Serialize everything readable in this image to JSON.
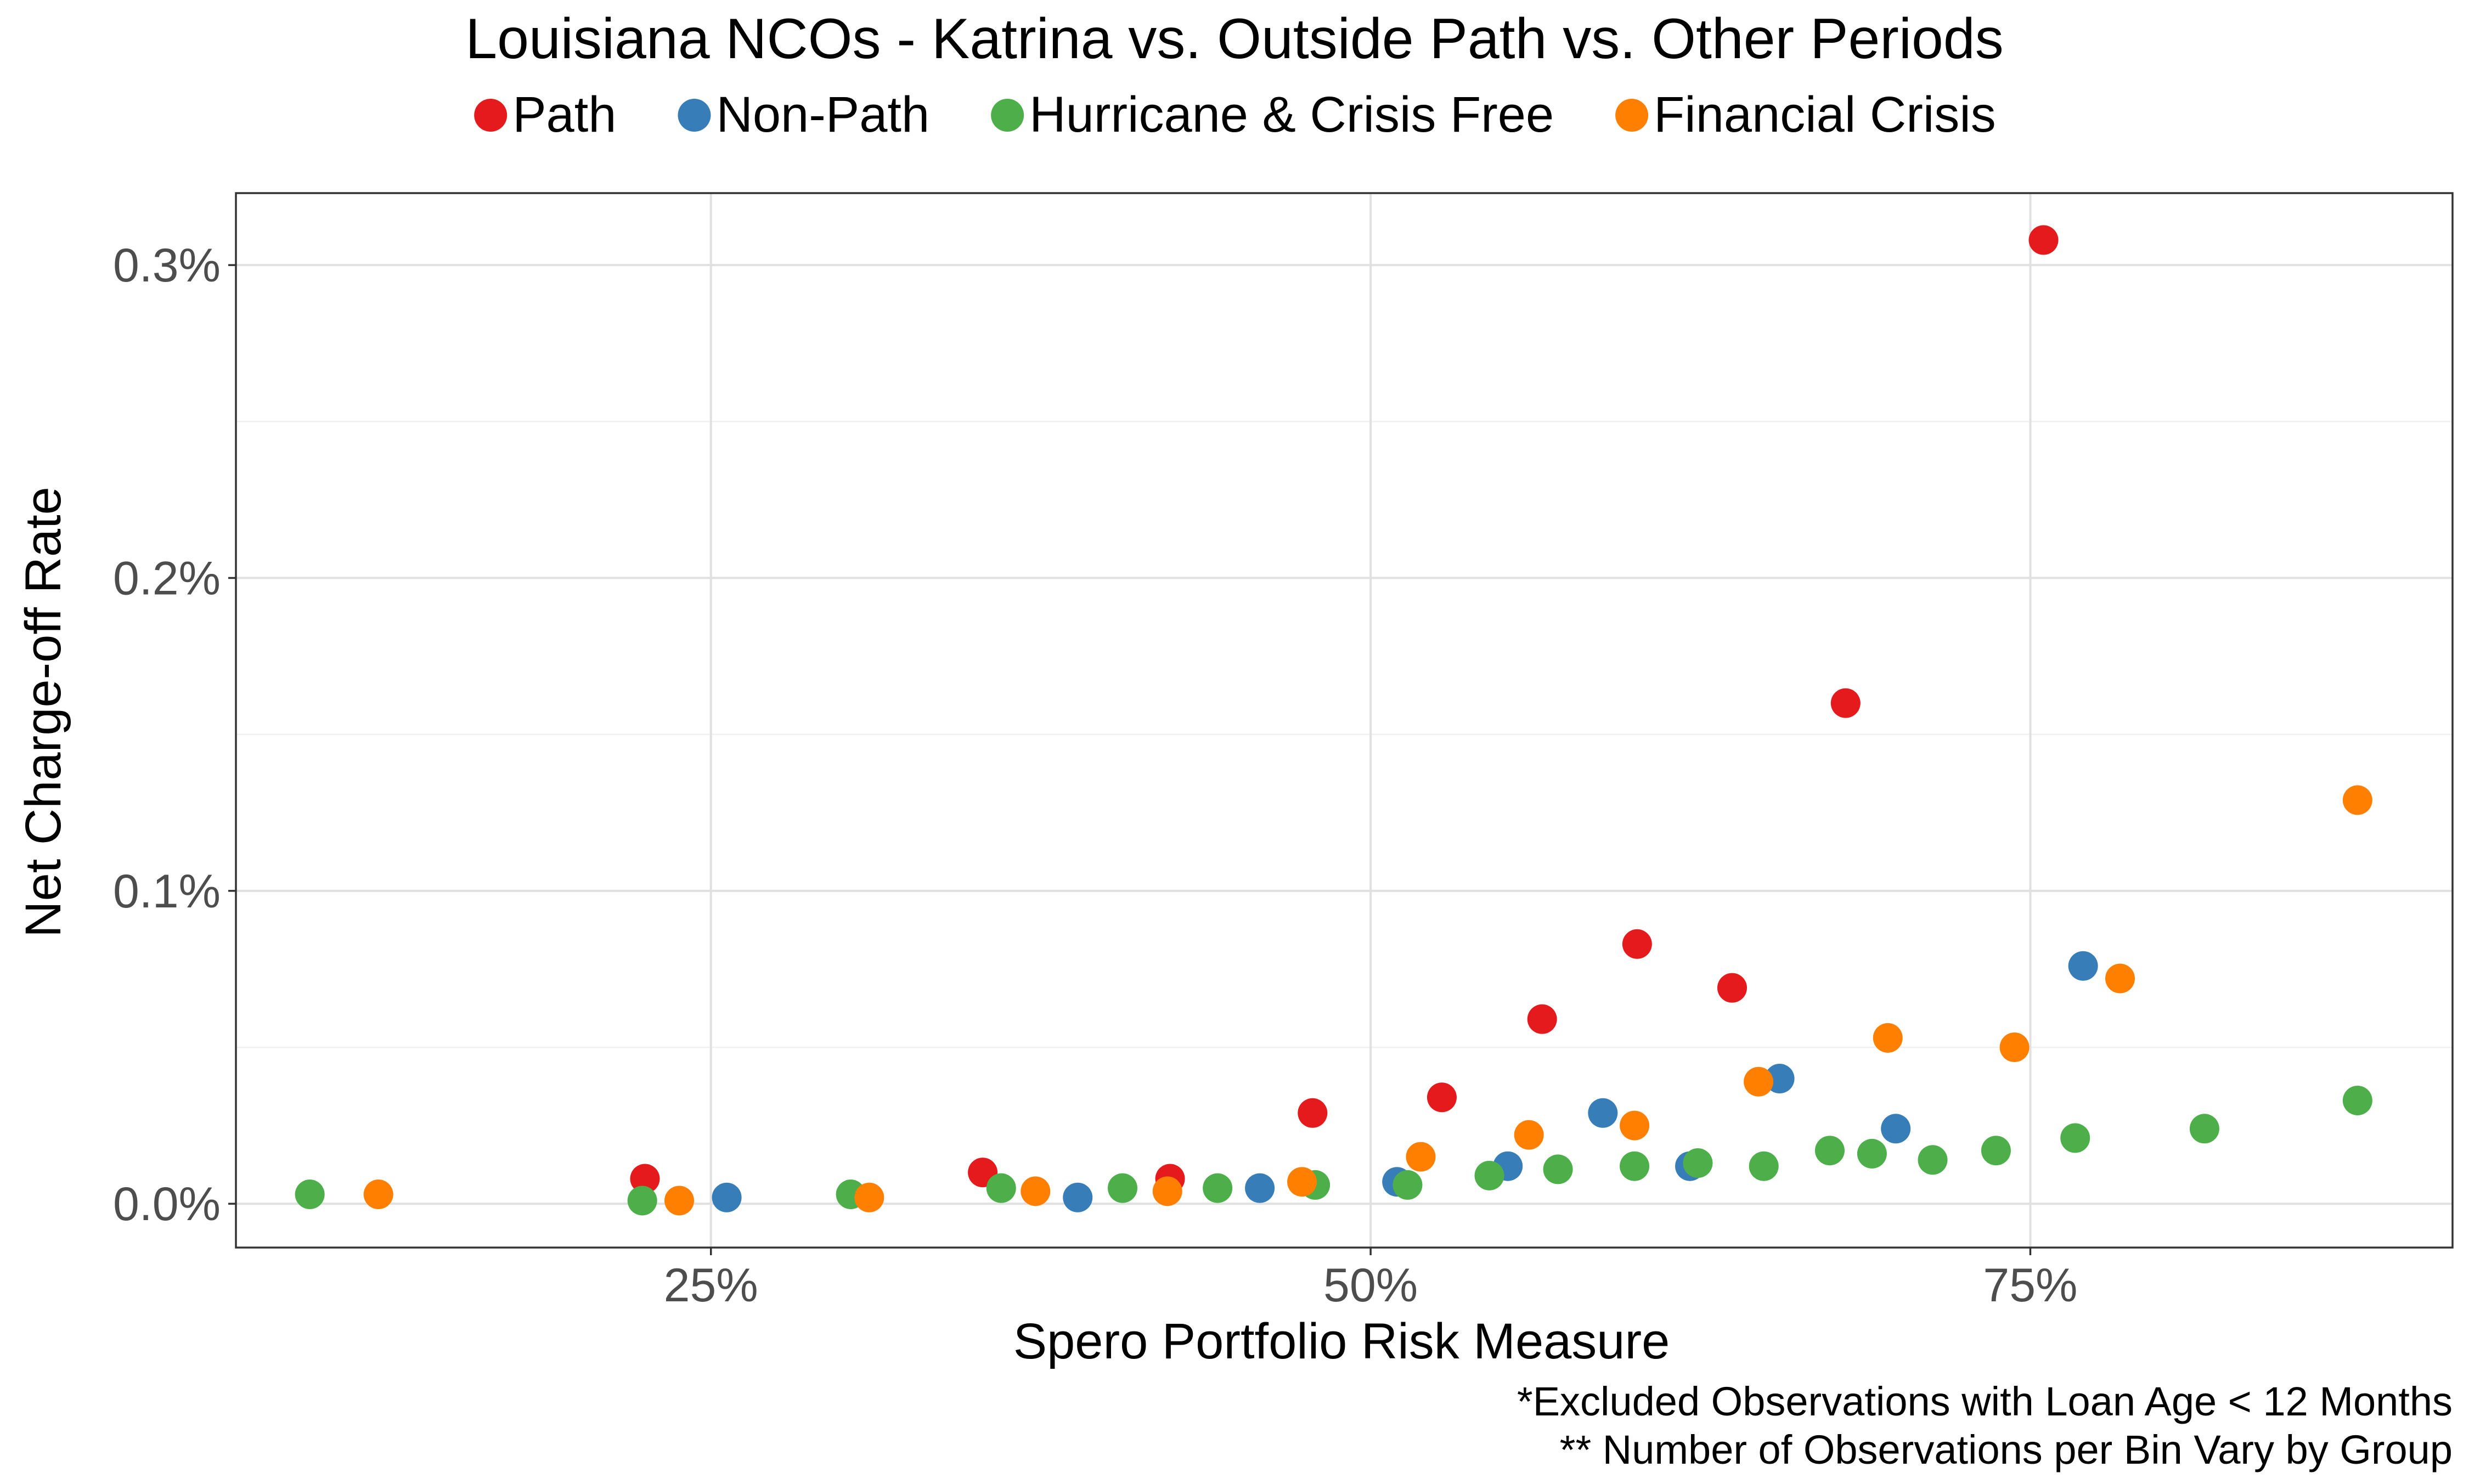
{
  "chart_data": {
    "type": "scatter",
    "title": "Louisiana NCOs - Katrina vs. Outside Path vs. Other Periods",
    "xlabel": "Spero Portfolio Risk Measure",
    "ylabel": "Net Charge-off Rate",
    "xlim": [
      0.07,
      0.91
    ],
    "ylim": [
      -0.00014,
      0.00323
    ],
    "x_ticks": [
      {
        "value": 0.25,
        "label": "25%"
      },
      {
        "value": 0.5,
        "label": "50%"
      },
      {
        "value": 0.75,
        "label": "75%"
      }
    ],
    "y_ticks": [
      {
        "value": 0.0,
        "label": "0.0%"
      },
      {
        "value": 0.001,
        "label": "0.1%"
      },
      {
        "value": 0.002,
        "label": "0.2%"
      },
      {
        "value": 0.003,
        "label": "0.3%"
      }
    ],
    "grid": true,
    "legend_position": "top",
    "series": [
      {
        "name": "Path",
        "color": "#e41a1c",
        "points": [
          {
            "x": 0.225,
            "y": 8e-05
          },
          {
            "x": 0.353,
            "y": 0.0001
          },
          {
            "x": 0.424,
            "y": 8e-05
          },
          {
            "x": 0.478,
            "y": 0.00029
          },
          {
            "x": 0.527,
            "y": 0.00034
          },
          {
            "x": 0.565,
            "y": 0.00059
          },
          {
            "x": 0.601,
            "y": 0.00083
          },
          {
            "x": 0.637,
            "y": 0.00069
          },
          {
            "x": 0.68,
            "y": 0.0016
          },
          {
            "x": 0.755,
            "y": 0.00308
          }
        ]
      },
      {
        "name": "Non-Path",
        "color": "#377eb8",
        "points": [
          {
            "x": 0.256,
            "y": 2e-05
          },
          {
            "x": 0.389,
            "y": 2e-05
          },
          {
            "x": 0.458,
            "y": 5e-05
          },
          {
            "x": 0.51,
            "y": 7e-05
          },
          {
            "x": 0.552,
            "y": 0.00012
          },
          {
            "x": 0.588,
            "y": 0.00029
          },
          {
            "x": 0.621,
            "y": 0.00012
          },
          {
            "x": 0.655,
            "y": 0.0004
          },
          {
            "x": 0.699,
            "y": 0.00024
          },
          {
            "x": 0.77,
            "y": 0.00076
          }
        ]
      },
      {
        "name": "Hurricane & Crisis Free",
        "color": "#4daf4a",
        "points": [
          {
            "x": 0.098,
            "y": 3e-05
          },
          {
            "x": 0.224,
            "y": 1e-05
          },
          {
            "x": 0.303,
            "y": 3e-05
          },
          {
            "x": 0.36,
            "y": 5e-05
          },
          {
            "x": 0.406,
            "y": 5e-05
          },
          {
            "x": 0.442,
            "y": 5e-05
          },
          {
            "x": 0.479,
            "y": 6e-05
          },
          {
            "x": 0.514,
            "y": 6e-05
          },
          {
            "x": 0.545,
            "y": 9e-05
          },
          {
            "x": 0.571,
            "y": 0.00011
          },
          {
            "x": 0.6,
            "y": 0.00012
          },
          {
            "x": 0.624,
            "y": 0.00013
          },
          {
            "x": 0.649,
            "y": 0.00012
          },
          {
            "x": 0.674,
            "y": 0.00017
          },
          {
            "x": 0.69,
            "y": 0.00016
          },
          {
            "x": 0.713,
            "y": 0.00014
          },
          {
            "x": 0.737,
            "y": 0.00017
          },
          {
            "x": 0.767,
            "y": 0.00021
          },
          {
            "x": 0.816,
            "y": 0.00024
          },
          {
            "x": 0.874,
            "y": 0.00033
          }
        ]
      },
      {
        "name": "Financial Crisis",
        "color": "#ff7f00",
        "points": [
          {
            "x": 0.124,
            "y": 3e-05
          },
          {
            "x": 0.238,
            "y": 1e-05
          },
          {
            "x": 0.31,
            "y": 2e-05
          },
          {
            "x": 0.373,
            "y": 4e-05
          },
          {
            "x": 0.423,
            "y": 4e-05
          },
          {
            "x": 0.474,
            "y": 7e-05
          },
          {
            "x": 0.519,
            "y": 0.00015
          },
          {
            "x": 0.56,
            "y": 0.00022
          },
          {
            "x": 0.6,
            "y": 0.00025
          },
          {
            "x": 0.647,
            "y": 0.00039
          },
          {
            "x": 0.696,
            "y": 0.00053
          },
          {
            "x": 0.744,
            "y": 0.0005
          },
          {
            "x": 0.784,
            "y": 0.00072
          },
          {
            "x": 0.874,
            "y": 0.00129
          }
        ]
      }
    ],
    "captions": [
      "*Excluded Observations with Loan Age < 12 Months",
      "** Number of Observations per Bin Vary by Group"
    ]
  }
}
